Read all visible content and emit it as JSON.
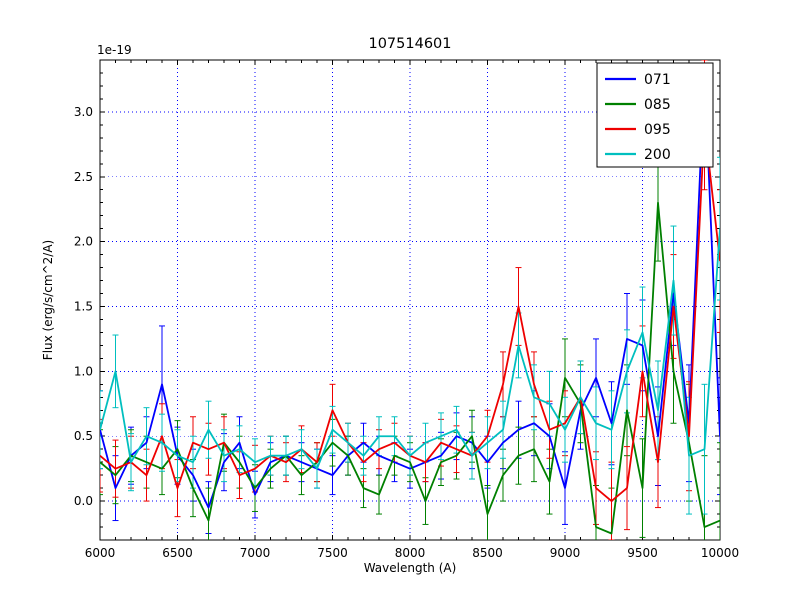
{
  "chart_data": {
    "type": "line",
    "title": "107514601",
    "xlabel": "Wavelength (A)",
    "ylabel": "Flux (erg/s/cm^2/A)",
    "y_offset_text": "1e-19",
    "xlim": [
      6000,
      10000
    ],
    "ylim": [
      -0.3,
      3.4
    ],
    "xticks": [
      6000,
      6500,
      7000,
      7500,
      8000,
      8500,
      9000,
      9500,
      10000
    ],
    "xtick_labels": [
      "6000",
      "6500",
      "7000",
      "7500",
      "8000",
      "8500",
      "9000",
      "9500",
      "10000"
    ],
    "yticks": [
      0,
      0.5,
      1,
      1.5,
      2,
      2.5,
      3
    ],
    "ytick_labels": [
      "0.0",
      "0.5",
      "1.0",
      "1.5",
      "2.0",
      "2.5",
      "3.0"
    ],
    "grid": true,
    "grid_style": "dotted",
    "grid_color": "#0000ff",
    "axes_color": "#000000",
    "legend_position": "upper right",
    "x": [
      6000,
      6100,
      6200,
      6300,
      6400,
      6500,
      6600,
      6700,
      6800,
      6900,
      7000,
      7100,
      7200,
      7300,
      7400,
      7500,
      7600,
      7700,
      7800,
      7900,
      8000,
      8100,
      8200,
      8300,
      8400,
      8500,
      8600,
      8700,
      8800,
      8900,
      9000,
      9100,
      9200,
      9300,
      9400,
      9500,
      9600,
      9700,
      9800,
      9900,
      10000
    ],
    "series": [
      {
        "name": "071",
        "color": "#0000ff",
        "values": [
          0.55,
          0.1,
          0.35,
          0.45,
          0.9,
          0.35,
          0.2,
          -0.05,
          0.3,
          0.45,
          0.05,
          0.3,
          0.35,
          0.3,
          0.25,
          0.2,
          0.35,
          0.45,
          0.35,
          0.3,
          0.25,
          0.3,
          0.35,
          0.5,
          0.45,
          0.3,
          0.45,
          0.55,
          0.6,
          0.5,
          0.1,
          0.7,
          0.95,
          0.6,
          1.25,
          1.2,
          0.5,
          1.6,
          0.6,
          3.3,
          0.5
        ],
        "errors": [
          0.3,
          0.25,
          0.22,
          0.2,
          0.45,
          0.22,
          0.2,
          0.2,
          0.22,
          0.2,
          0.18,
          0.15,
          0.15,
          0.15,
          0.15,
          0.15,
          0.15,
          0.15,
          0.15,
          0.15,
          0.15,
          0.15,
          0.18,
          0.18,
          0.2,
          0.2,
          0.2,
          0.22,
          0.25,
          0.25,
          0.28,
          0.3,
          0.3,
          0.32,
          0.35,
          0.35,
          0.38,
          0.4,
          0.45,
          0.5,
          0.45
        ]
      },
      {
        "name": "085",
        "color": "#008000",
        "values": [
          0.3,
          0.2,
          0.35,
          0.3,
          0.25,
          0.4,
          0.1,
          -0.15,
          0.45,
          0.3,
          0.1,
          0.25,
          0.35,
          0.2,
          0.3,
          0.45,
          0.35,
          0.1,
          0.05,
          0.35,
          0.3,
          0.0,
          0.3,
          0.35,
          0.5,
          -0.1,
          0.2,
          0.35,
          0.4,
          0.15,
          0.95,
          0.75,
          -0.2,
          -0.25,
          0.7,
          0.1,
          2.3,
          1.0,
          0.45,
          -0.2,
          -0.15
        ],
        "errors": [
          0.25,
          0.22,
          0.2,
          0.2,
          0.2,
          0.22,
          0.22,
          0.25,
          0.22,
          0.2,
          0.18,
          0.15,
          0.15,
          0.15,
          0.15,
          0.18,
          0.15,
          0.15,
          0.15,
          0.15,
          0.15,
          0.18,
          0.18,
          0.18,
          0.2,
          0.22,
          0.2,
          0.22,
          0.25,
          0.25,
          0.3,
          0.3,
          0.32,
          0.35,
          0.35,
          0.38,
          0.45,
          0.4,
          0.45,
          0.55,
          0.6
        ]
      },
      {
        "name": "095",
        "color": "#ee0000",
        "values": [
          0.35,
          0.25,
          0.3,
          0.2,
          0.5,
          0.1,
          0.45,
          0.4,
          0.45,
          0.2,
          0.25,
          0.35,
          0.3,
          0.4,
          0.3,
          0.7,
          0.45,
          0.3,
          0.4,
          0.45,
          0.35,
          0.3,
          0.45,
          0.4,
          0.35,
          0.5,
          0.9,
          1.5,
          0.9,
          0.55,
          0.6,
          0.8,
          0.1,
          0.0,
          0.1,
          1.0,
          0.3,
          1.5,
          0.5,
          2.9,
          1.85
        ],
        "errors": [
          0.28,
          0.22,
          0.2,
          0.2,
          0.25,
          0.22,
          0.2,
          0.2,
          0.2,
          0.18,
          0.18,
          0.15,
          0.15,
          0.18,
          0.15,
          0.2,
          0.15,
          0.15,
          0.15,
          0.15,
          0.15,
          0.15,
          0.18,
          0.18,
          0.18,
          0.2,
          0.25,
          0.3,
          0.25,
          0.22,
          0.25,
          0.28,
          0.28,
          0.3,
          0.32,
          0.35,
          0.35,
          0.4,
          0.42,
          0.5,
          0.55
        ]
      },
      {
        "name": "200",
        "color": "#00bfbf",
        "values": [
          0.55,
          1.0,
          0.3,
          0.5,
          0.45,
          0.35,
          0.3,
          0.55,
          0.35,
          0.4,
          0.3,
          0.35,
          0.35,
          0.4,
          0.25,
          0.55,
          0.45,
          0.35,
          0.5,
          0.5,
          0.35,
          0.45,
          0.5,
          0.55,
          0.35,
          0.45,
          0.55,
          1.2,
          0.8,
          0.75,
          0.55,
          0.8,
          0.6,
          0.55,
          1.0,
          1.3,
          0.7,
          1.7,
          0.35,
          0.4,
          2.1
        ],
        "errors": [
          0.3,
          0.28,
          0.22,
          0.22,
          0.22,
          0.2,
          0.2,
          0.22,
          0.2,
          0.18,
          0.18,
          0.15,
          0.15,
          0.15,
          0.15,
          0.18,
          0.15,
          0.15,
          0.15,
          0.15,
          0.15,
          0.15,
          0.18,
          0.18,
          0.18,
          0.2,
          0.22,
          0.25,
          0.25,
          0.25,
          0.25,
          0.28,
          0.28,
          0.3,
          0.32,
          0.35,
          0.38,
          0.42,
          0.45,
          0.5,
          0.55
        ]
      }
    ]
  }
}
